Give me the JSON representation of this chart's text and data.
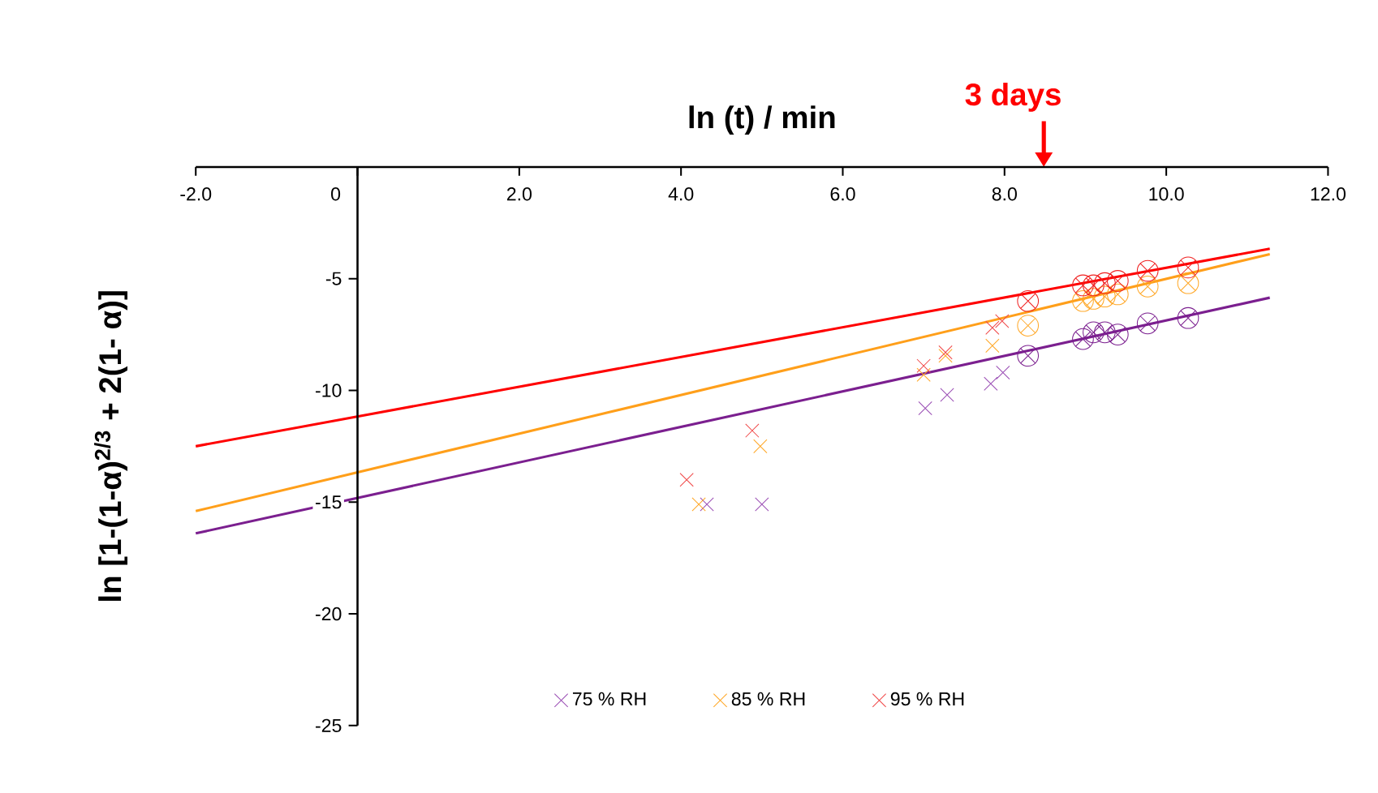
{
  "chart_data": {
    "type": "scatter",
    "xlabel": "ln (t) / min",
    "ylabel": "ln [1-(1-α)$^{2/3}$ + 2(1- α)]",
    "annotations": [
      "3 days"
    ],
    "xlim": [
      -2,
      12
    ],
    "ylim": [
      -25,
      0
    ],
    "xticks": [
      {
        "value": -2,
        "label": "-2.0"
      },
      0,
      {
        "value": 2,
        "label": "2.0"
      },
      {
        "value": 4,
        "label": "4.0"
      },
      {
        "value": 6,
        "label": "6.0"
      },
      {
        "value": 8,
        "label": "8.0"
      },
      {
        "value": 10,
        "label": "10.0"
      },
      {
        "value": 12,
        "label": "12.0"
      }
    ],
    "yticks": [
      -25,
      -20,
      -15,
      -10,
      -5
    ],
    "legend": "bottom",
    "grid": false,
    "series": [
      {
        "name": "75 % RH",
        "color": "#9b4fb5",
        "marker": "cross",
        "x": [
          4.32,
          5.0,
          7.02,
          7.29,
          7.83,
          7.98
        ],
        "values": [
          -15.1,
          -15.1,
          -10.8,
          -10.2,
          -9.7,
          -9.2
        ]
      },
      {
        "name": "85 % RH",
        "color": "#ffa726",
        "marker": "cross",
        "x": [
          4.22,
          4.98,
          7.0,
          7.27,
          7.85
        ],
        "values": [
          -15.1,
          -12.5,
          -9.3,
          -8.45,
          -8.0
        ]
      },
      {
        "name": "95 % RH",
        "color": "#f04848",
        "marker": "cross",
        "x": [
          4.07,
          4.88,
          7.0,
          7.27,
          7.85,
          7.97
        ],
        "values": [
          -14.0,
          -11.8,
          -8.9,
          -8.3,
          -7.2,
          -6.9
        ]
      },
      {
        "color": "#7b1f8f",
        "marker": "cross",
        "x": [
          8.29,
          8.97,
          9.1,
          9.24,
          9.4,
          9.77,
          10.27
        ],
        "values": [
          -8.45,
          -7.7,
          -7.4,
          -7.4,
          -7.5,
          -7.0,
          -6.76
        ]
      },
      {
        "color": "#ffa726",
        "marker": "cross",
        "x": [
          8.29,
          8.97,
          9.1,
          9.24,
          9.4,
          9.77,
          10.27
        ],
        "values": [
          -7.1,
          -6.0,
          -5.9,
          -5.8,
          -5.7,
          -5.35,
          -5.2
        ]
      },
      {
        "color": "#f02020",
        "marker": "cross",
        "x": [
          8.29,
          8.97,
          9.1,
          9.24,
          9.4,
          9.77,
          10.27
        ],
        "values": [
          -6.0,
          -5.3,
          -5.3,
          -5.2,
          -5.1,
          -4.65,
          -4.5
        ]
      },
      {
        "type": "line",
        "color": "#7b1f8f",
        "marker": "none",
        "x": [
          -2,
          11.28
        ],
        "values": [
          -16.4,
          -5.85
        ]
      },
      {
        "type": "line",
        "color": "#ff9f1a",
        "marker": "none",
        "x": [
          -2,
          11.28
        ],
        "values": [
          -15.4,
          -3.9
        ]
      },
      {
        "type": "line",
        "color": "#ff0000",
        "marker": "none",
        "x": [
          -2,
          11.28
        ],
        "values": [
          -12.5,
          -3.66
        ]
      }
    ]
  }
}
